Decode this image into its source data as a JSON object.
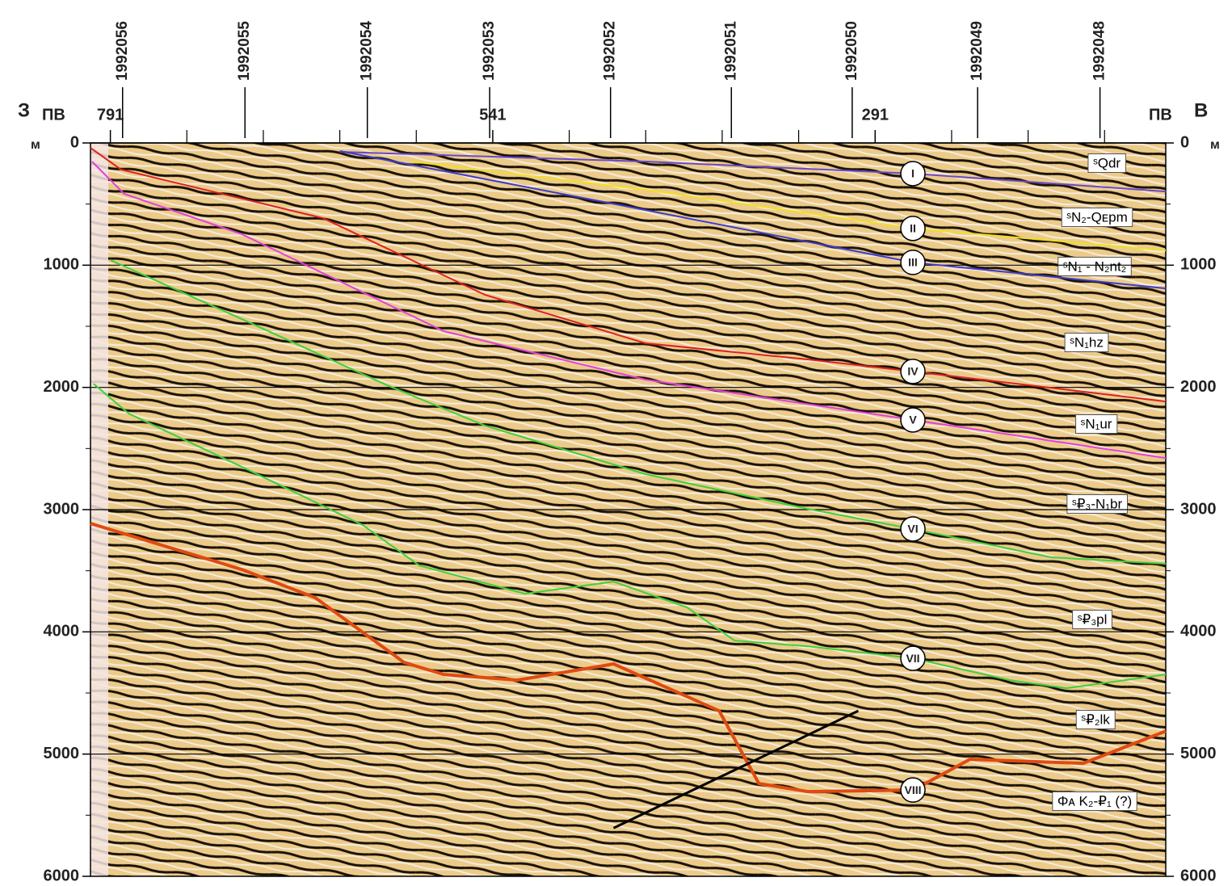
{
  "chart_data": {
    "type": "seismic-section",
    "west": "З",
    "east": "В",
    "x_label_left": "ПВ",
    "x_label_right": "ПВ",
    "y_unit": "м",
    "xlim": [
      804,
      101
    ],
    "xticks": [
      791,
      541,
      291
    ],
    "xminorticks": [
      741,
      691,
      641,
      591,
      491,
      441,
      391,
      341,
      241,
      191,
      141
    ],
    "ylim": [
      6000,
      0
    ],
    "yticks": [
      0,
      1000,
      2000,
      3000,
      4000,
      5000,
      6000
    ],
    "yminorticks": [
      500,
      1500,
      2500,
      3500,
      4500,
      5500
    ],
    "grid": true,
    "wells": [
      {
        "name": "1992056",
        "x": 783
      },
      {
        "name": "1992055",
        "x": 703
      },
      {
        "name": "1992054",
        "x": 623
      },
      {
        "name": "1992053",
        "x": 543
      },
      {
        "name": "1992052",
        "x": 464
      },
      {
        "name": "1992051",
        "x": 385
      },
      {
        "name": "1992050",
        "x": 306
      },
      {
        "name": "1992049",
        "x": 224
      },
      {
        "name": "1992048",
        "x": 144
      }
    ],
    "series": [
      {
        "name": "I",
        "color": "#6a48c8",
        "x": [
          641,
          441,
          266,
          101
        ],
        "values": [
          73,
          152,
          251,
          397
        ]
      },
      {
        "name": "II",
        "color": "#f0e020",
        "x": [
          594,
          441,
          266,
          101
        ],
        "values": [
          152,
          383,
          700,
          879
        ]
      },
      {
        "name": "III",
        "color": "#3c3cd0",
        "x": [
          641,
          441,
          266,
          101
        ],
        "values": [
          66,
          549,
          978,
          1190
        ]
      },
      {
        "name": "IV",
        "color": "#e02020",
        "x": [
          804,
          784,
          652,
          546,
          441,
          335,
          266,
          101
        ],
        "values": [
          40,
          218,
          615,
          1243,
          1639,
          1771,
          1870,
          2115
        ]
      },
      {
        "name": "V",
        "color": "#e040e0",
        "x": [
          803,
          782,
          705,
          573,
          441,
          266,
          101
        ],
        "values": [
          152,
          416,
          747,
          1540,
          1937,
          2267,
          2578
        ]
      },
      {
        "name": "VI",
        "color": "#3cd03c",
        "x": [
          791,
          705,
          610,
          546,
          441,
          335,
          266,
          176,
          101
        ],
        "values": [
          958,
          1441,
          1983,
          2313,
          2710,
          2994,
          3159,
          3390,
          3443
        ]
      },
      {
        "name": "VII",
        "color": "#3cd03c",
        "x": [
          802,
          779,
          705,
          626,
          589,
          520,
          462,
          414,
          383,
          335,
          266,
          203,
          166,
          101
        ],
        "values": [
          1970,
          2214,
          2650,
          3126,
          3457,
          3688,
          3589,
          3800,
          4071,
          4118,
          4217,
          4395,
          4461,
          4349
        ]
      },
      {
        "name": "VIII",
        "color": "#e04a10",
        "x": [
          804,
          705,
          657,
          599,
          573,
          525,
          462,
          393,
          367,
          335,
          266,
          229,
          155,
          101
        ],
        "values": [
          3113,
          3490,
          3721,
          4250,
          4349,
          4395,
          4263,
          4646,
          5241,
          5307,
          5294,
          5043,
          5076,
          4812
        ]
      }
    ],
    "fault_line": {
      "color": "#000000",
      "x": [
        462,
        302
      ],
      "values": [
        5605,
        4646
      ]
    },
    "formations": [
      "ˢQdr",
      "ˢN₂-Qᴇpm",
      "ˢN₁ - N₂nt₂",
      "ˢN₁hz",
      "ˢN₁ur",
      "ˢ₽₃-N₁br",
      "ˢ₽₃pl",
      "ˢ₽₂lk",
      "Φᴀ K₂-₽₁ (?)"
    ]
  }
}
